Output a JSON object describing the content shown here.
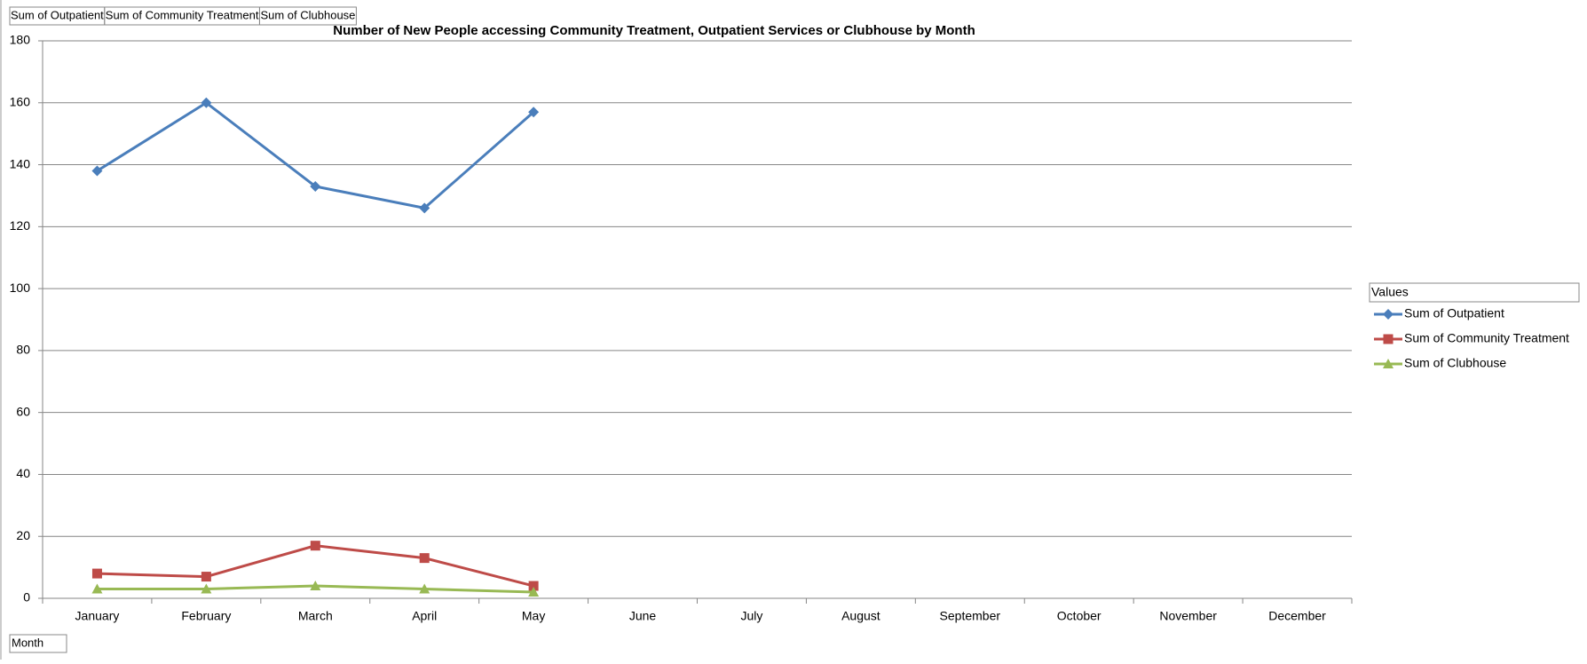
{
  "chart_data": {
    "type": "line",
    "title": "Number of New People accessing Community Treatment, Outpatient Services or Clubhouse by Month",
    "categories": [
      "January",
      "February",
      "March",
      "April",
      "May",
      "June",
      "July",
      "August",
      "September",
      "October",
      "November",
      "December"
    ],
    "x_field": "Month",
    "legend_title": "Values",
    "legend": "right",
    "series": [
      {
        "name": "Sum of Outpatient",
        "color": "#4a7ebb",
        "marker": "diamond",
        "values": [
          138,
          160,
          133,
          126,
          157,
          null,
          null,
          null,
          null,
          null,
          null,
          null
        ]
      },
      {
        "name": "Sum of Community Treatment",
        "color": "#be4b48",
        "marker": "square",
        "values": [
          8,
          7,
          17,
          13,
          4,
          null,
          null,
          null,
          null,
          null,
          null,
          null
        ]
      },
      {
        "name": "Sum of Clubhouse",
        "color": "#98b954",
        "marker": "triangle",
        "values": [
          3,
          3,
          4,
          3,
          2,
          null,
          null,
          null,
          null,
          null,
          null,
          null
        ]
      }
    ],
    "ylim": [
      0,
      180
    ],
    "yticks": [
      0,
      20,
      40,
      60,
      80,
      100,
      120,
      140,
      160,
      180
    ],
    "grid": true
  }
}
